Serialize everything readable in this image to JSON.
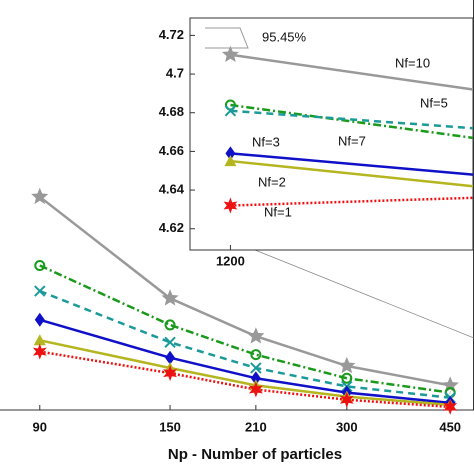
{
  "chart_data": [
    {
      "type": "line",
      "x_label": "Np - Number of particles",
      "x": [
        90,
        150,
        210,
        300,
        450
      ],
      "xlim": [
        77,
        494
      ],
      "xscale": "log",
      "xticks": [
        90,
        150,
        210,
        300,
        450
      ],
      "ylim": [
        4.6,
        5.0
      ],
      "series": [
        {
          "name": "Nf=10",
          "color": "#999999",
          "values": [
            4.808,
            4.709,
            4.672,
            4.643,
            4.624
          ]
        },
        {
          "name": "Nf=7",
          "color": "#1a9a1a",
          "values": [
            4.741,
            4.683,
            4.654,
            4.631,
            4.617
          ]
        },
        {
          "name": "Nf=5",
          "color": "#1b9a9a",
          "values": [
            4.716,
            4.666,
            4.641,
            4.623,
            4.612
          ]
        },
        {
          "name": "Nf=3",
          "color": "#1010c8",
          "values": [
            4.688,
            4.651,
            4.631,
            4.617,
            4.607
          ]
        },
        {
          "name": "Nf=2",
          "color": "#b5b520",
          "values": [
            4.668,
            4.641,
            4.624,
            4.613,
            4.605
          ]
        },
        {
          "name": "Nf=1",
          "color": "#ee1111",
          "values": [
            4.657,
            4.636,
            4.62,
            4.61,
            4.603
          ]
        }
      ]
    },
    {
      "type": "line",
      "annotation": "95.45%",
      "x": [
        1200,
        1500
      ],
      "xlim": [
        1150,
        1500
      ],
      "xticks": [
        1200
      ],
      "ylim": [
        4.609,
        4.729
      ],
      "yticks": [
        4.62,
        4.64,
        4.66,
        4.68,
        4.7,
        4.72
      ],
      "series": [
        {
          "name": "Nf=10",
          "color": "#999999",
          "values": [
            4.71,
            4.692
          ]
        },
        {
          "name": "Nf=7",
          "color": "#1a9a1a",
          "values": [
            4.684,
            4.667
          ]
        },
        {
          "name": "Nf=5",
          "color": "#1b9a9a",
          "values": [
            4.681,
            4.672
          ]
        },
        {
          "name": "Nf=3",
          "color": "#1010c8",
          "values": [
            4.659,
            4.648
          ]
        },
        {
          "name": "Nf=2",
          "color": "#b5b520",
          "values": [
            4.655,
            4.642
          ]
        },
        {
          "name": "Nf=1",
          "color": "#ee1111",
          "values": [
            4.632,
            4.636
          ]
        }
      ]
    }
  ]
}
